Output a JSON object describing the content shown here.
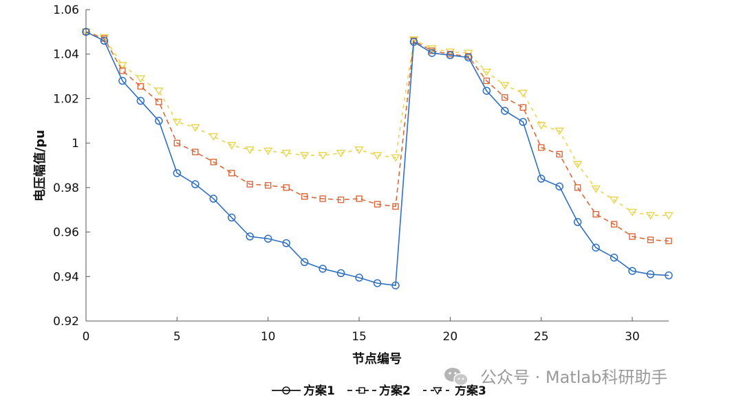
{
  "chart_data": {
    "type": "line",
    "xlabel": "节点编号",
    "ylabel": "电压幅值/pu",
    "xlim": [
      0,
      32
    ],
    "ylim": [
      0.92,
      1.06
    ],
    "x_ticks": [
      0,
      5,
      10,
      15,
      20,
      25,
      30
    ],
    "y_ticks": [
      0.92,
      0.94,
      0.96,
      0.98,
      1,
      1.02,
      1.04,
      1.06
    ],
    "y_tick_labels": [
      "0.92",
      "0.94",
      "0.96",
      "0.98",
      "1",
      "1.02",
      "1.04",
      "1.06"
    ],
    "x": [
      0,
      1,
      2,
      3,
      4,
      5,
      6,
      7,
      8,
      9,
      10,
      11,
      12,
      13,
      14,
      15,
      16,
      17,
      18,
      19,
      20,
      21,
      22,
      23,
      24,
      25,
      26,
      27,
      28,
      29,
      30,
      31,
      32
    ],
    "series": [
      {
        "name": "方案1",
        "color": "#2e6fc0",
        "line_style": "solid",
        "marker": "circle",
        "values": [
          1.05,
          1.046,
          1.028,
          1.019,
          1.01,
          0.9865,
          0.9815,
          0.975,
          0.9665,
          0.958,
          0.957,
          0.955,
          0.9465,
          0.9435,
          0.9415,
          0.9395,
          0.937,
          0.936,
          1.0455,
          1.0405,
          1.0395,
          1.0385,
          1.0235,
          1.0145,
          1.0095,
          0.984,
          0.9805,
          0.9645,
          0.953,
          0.9485,
          0.9425,
          0.941,
          0.9405
        ]
      },
      {
        "name": "方案2",
        "color": "#d9683a",
        "line_style": "dashed",
        "marker": "square",
        "values": [
          1.05,
          1.047,
          1.0325,
          1.0255,
          1.0185,
          1.0,
          0.996,
          0.9915,
          0.9865,
          0.9815,
          0.981,
          0.98,
          0.976,
          0.975,
          0.9745,
          0.975,
          0.9725,
          0.9715,
          1.046,
          1.0415,
          1.04,
          1.039,
          1.028,
          1.0205,
          1.016,
          0.998,
          0.995,
          0.98,
          0.968,
          0.9635,
          0.958,
          0.9565,
          0.956
        ]
      },
      {
        "name": "方案3",
        "color": "#e9d44a",
        "line_style": "dotted-dashed",
        "marker": "triangle-down",
        "values": [
          1.05,
          1.0475,
          1.035,
          1.029,
          1.0235,
          1.0095,
          1.007,
          1.003,
          0.999,
          0.997,
          0.9965,
          0.9955,
          0.9945,
          0.9945,
          0.9955,
          0.997,
          0.9945,
          0.9935,
          1.0465,
          1.0425,
          1.041,
          1.0405,
          1.032,
          1.026,
          1.0225,
          1.008,
          1.0055,
          0.9905,
          0.9795,
          0.9745,
          0.969,
          0.9675,
          0.9675
        ]
      }
    ],
    "legend_position": "bottom",
    "grid": false
  },
  "watermark": {
    "icon": "wechat-icon",
    "text": "公众号 · Matlab科研助手"
  }
}
